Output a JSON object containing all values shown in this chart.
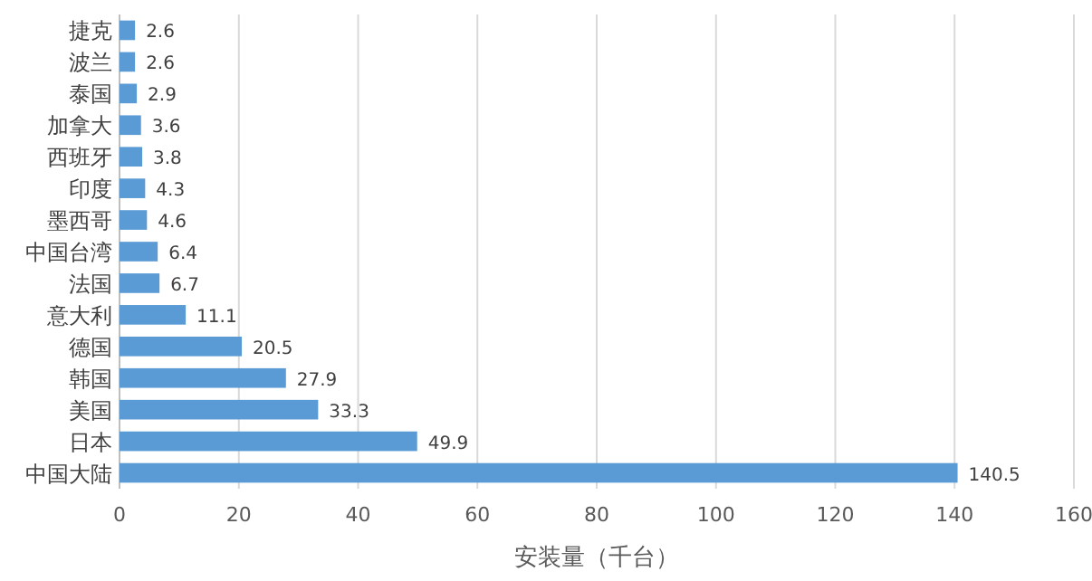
{
  "chart_data": {
    "type": "bar",
    "orientation": "horizontal",
    "categories": [
      "捷克",
      "波兰",
      "泰国",
      "加拿大",
      "西班牙",
      "印度",
      "墨西哥",
      "中国台湾",
      "法国",
      "意大利",
      "德国",
      "韩国",
      "美国",
      "日本",
      "中国大陆"
    ],
    "values": [
      2.6,
      2.6,
      2.9,
      3.6,
      3.8,
      4.3,
      4.6,
      6.4,
      6.7,
      11.1,
      20.5,
      27.9,
      33.3,
      49.9,
      140.5
    ],
    "color": "#5b9bd5",
    "xlim": [
      0,
      160
    ],
    "xticks": [
      0,
      20,
      40,
      60,
      80,
      100,
      120,
      140,
      160
    ],
    "grid": "x",
    "xlabel": "安装量（千台）",
    "data_labels": true
  }
}
